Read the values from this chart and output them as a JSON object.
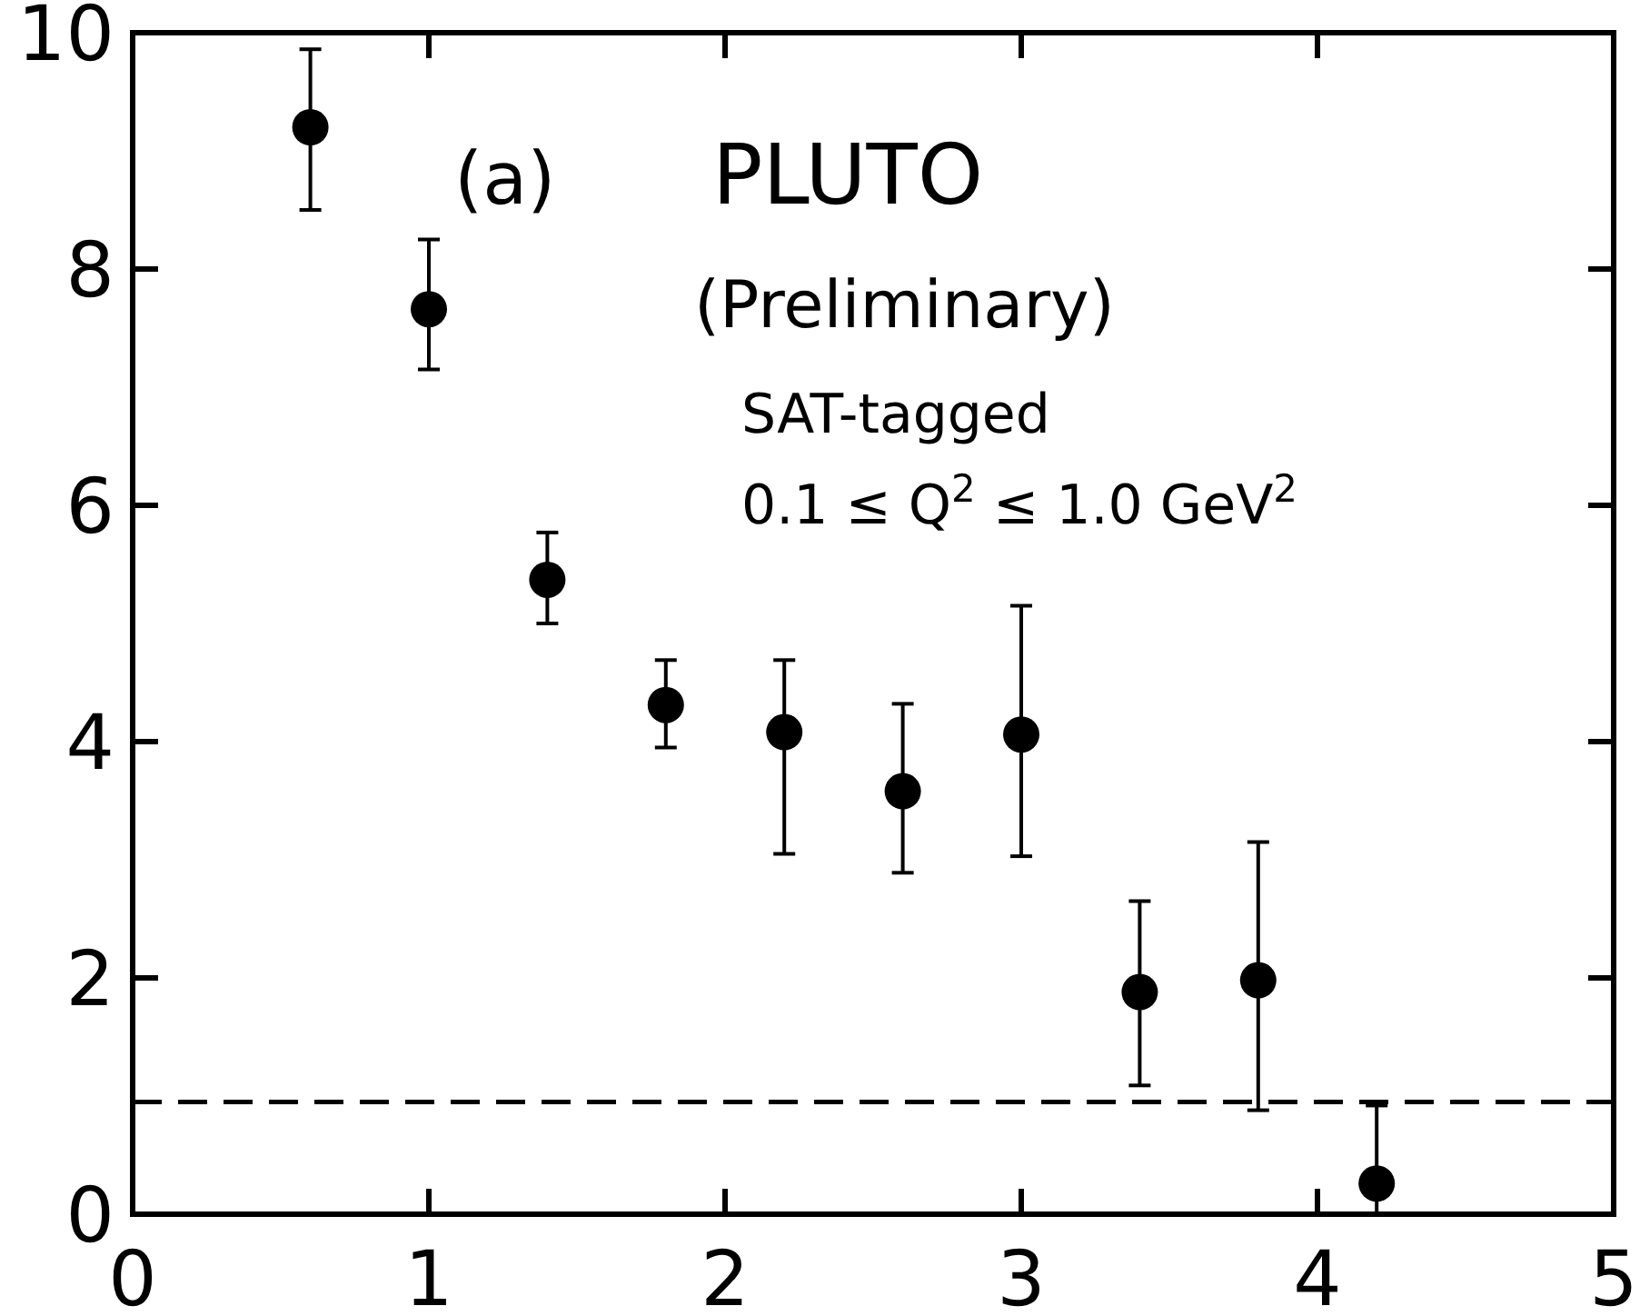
{
  "chart_data": {
    "type": "scatter",
    "x": [
      0.6,
      1.0,
      1.4,
      1.8,
      2.2,
      2.6,
      3.0,
      3.4,
      3.8,
      4.2
    ],
    "values": [
      9.2,
      7.66,
      5.37,
      4.31,
      4.08,
      3.58,
      4.06,
      1.88,
      1.98,
      0.26
    ],
    "errors": [
      [
        8.5,
        9.86
      ],
      [
        7.15,
        8.25
      ],
      [
        5.0,
        5.77
      ],
      [
        3.95,
        4.69
      ],
      [
        3.05,
        4.69
      ],
      [
        2.89,
        4.32
      ],
      [
        3.03,
        5.15
      ],
      [
        1.09,
        2.65
      ],
      [
        0.88,
        3.15
      ],
      [
        0,
        0.92
      ]
    ],
    "color": "#000000",
    "marker": "circle",
    "xlim": [
      0,
      5
    ],
    "xticks": [
      0,
      1,
      2,
      3,
      4,
      5
    ],
    "ylim": [
      0,
      10
    ],
    "yticks": [
      0,
      2,
      4,
      6,
      8,
      10
    ],
    "ref_lines": [
      {
        "axis": "y",
        "value": 0.95,
        "line_style": "dashed"
      }
    ],
    "annotations": [
      "(a)",
      "PLUTO",
      "(Preliminary)",
      "SAT-tagged",
      "0.1 ≤ Q$^{2}$ ≤ 1.0 GeV$^{2}$"
    ],
    "grid": false
  }
}
